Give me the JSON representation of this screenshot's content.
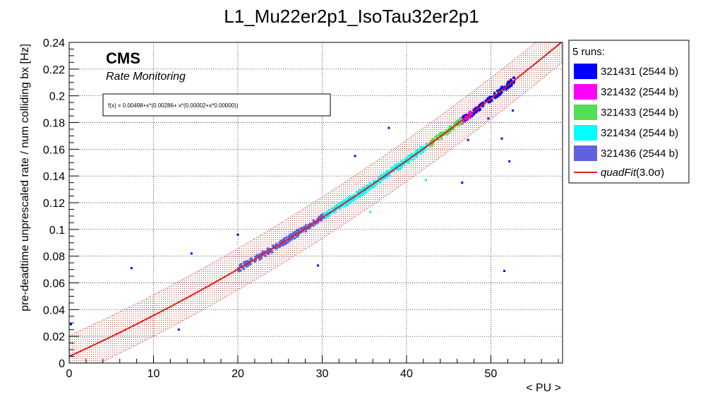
{
  "chart_data": {
    "type": "scatter",
    "title": "L1_Mu22er2p1_IsoTau32er2p1",
    "xlabel": "< PU >",
    "ylabel": "pre-deadtime unprescaled rate / num colliding bx [Hz]",
    "xlim": [
      0,
      58.5
    ],
    "ylim": [
      0,
      0.24
    ],
    "xticks": [
      0,
      10,
      20,
      30,
      40,
      50
    ],
    "yticks": [
      0,
      0.02,
      0.04,
      0.06,
      0.08,
      0.1,
      0.12,
      0.14,
      0.16,
      0.18,
      0.2,
      0.22,
      0.24
    ],
    "grid": true,
    "cms_label": "CMS",
    "cms_sublabel": "Rate Monitoring",
    "fit_formula": "f(x) = 0.00498+x*(0.00286+ x*(0.00002+x*0.00000))",
    "fit": {
      "name": "quadFit(3.0σ)",
      "name_main": "quadFit",
      "name_sigma": "(3.0σ)",
      "color": "#e41a1c",
      "p0": 0.00498,
      "p1": 0.00286,
      "p2": 2e-05,
      "band": 0.0155
    },
    "legend_header": "5 runs:",
    "series": [
      {
        "name": "321431 (2544 b)",
        "color": "#0000ff",
        "xrange": [
          46.5,
          52.8
        ],
        "outliers": [
          [
            0.2,
            0.029
          ],
          [
            7.4,
            0.071
          ],
          [
            14.5,
            0.082
          ],
          [
            13.0,
            0.025
          ],
          [
            20.0,
            0.096
          ],
          [
            29.5,
            0.073
          ],
          [
            33.9,
            0.155
          ],
          [
            37.9,
            0.176
          ],
          [
            46.6,
            0.135
          ],
          [
            51.3,
            0.168
          ],
          [
            52.2,
            0.151
          ],
          [
            51.6,
            0.069
          ],
          [
            48.0,
            0.186
          ],
          [
            47.3,
            0.167
          ],
          [
            52.6,
            0.189
          ],
          [
            49.7,
            0.183
          ]
        ]
      },
      {
        "name": "321432 (2544 b)",
        "color": "#ff00ff",
        "xrange": [
          46.0,
          47.6
        ],
        "outliers": []
      },
      {
        "name": "321433 (2544 b)",
        "color": "#55dd55",
        "xrange": [
          42.8,
          46.6
        ],
        "outliers": []
      },
      {
        "name": "321434 (2544 b)",
        "color": "#00ffff",
        "xrange": [
          30.0,
          42.5
        ],
        "outliers": [
          [
            35.7,
            0.113
          ],
          [
            42.3,
            0.137
          ],
          [
            33.0,
            0.118
          ]
        ]
      },
      {
        "name": "321436 (2544 b)",
        "color": "#6060e0",
        "xrange": [
          20.0,
          30.2
        ],
        "outliers": []
      }
    ]
  }
}
